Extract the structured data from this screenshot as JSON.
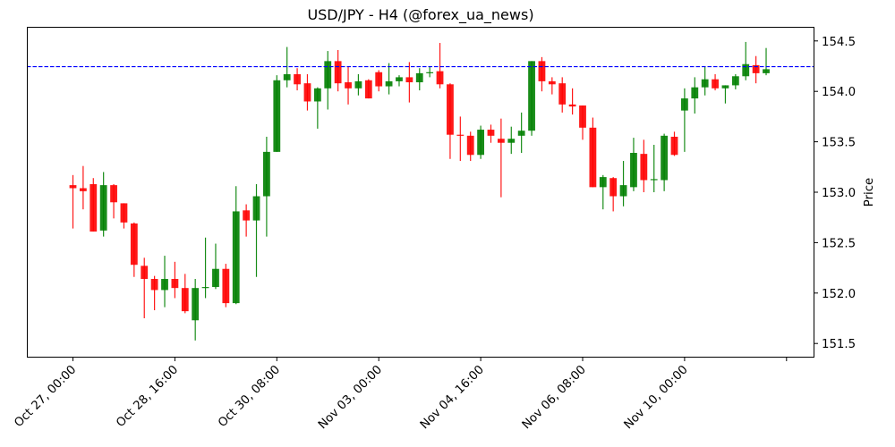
{
  "chart_data": {
    "type": "candlestick",
    "title": "USD/JPY - H4 (@forex_ua_news)",
    "xlabel": "",
    "ylabel": "Price",
    "ylim": [
      151.36,
      154.64
    ],
    "grid": false,
    "legend": null,
    "y_axis_position": "right",
    "y_ticks": [
      151.5,
      152.0,
      152.5,
      153.0,
      153.5,
      154.0,
      154.5
    ],
    "y_tick_labels": [
      "151.5",
      "152.0",
      "152.5",
      "153.0",
      "153.5",
      "154.0",
      "154.5"
    ],
    "x_tick_labels": [
      "Oct 27, 00:00",
      "Oct 28, 16:00",
      "Oct 30, 08:00",
      "Nov 03, 00:00",
      "Nov 04, 16:00",
      "Nov 06, 08:00",
      "Nov 10, 00:00",
      ""
    ],
    "x_tick_index": [
      0,
      10,
      20,
      30,
      40,
      50,
      60,
      70
    ],
    "reference_line": {
      "value": 154.245,
      "style": "dashed",
      "color": "#0000ff"
    },
    "colors": {
      "up": "#008000",
      "down": "#ff0000"
    },
    "candles": [
      {
        "o": 153.07,
        "h": 153.17,
        "l": 152.64,
        "c": 153.04
      },
      {
        "o": 153.04,
        "h": 153.26,
        "l": 152.83,
        "c": 153.01
      },
      {
        "o": 153.08,
        "h": 153.14,
        "l": 152.61,
        "c": 152.61
      },
      {
        "o": 152.62,
        "h": 153.2,
        "l": 152.56,
        "c": 153.07
      },
      {
        "o": 153.07,
        "h": 153.08,
        "l": 152.74,
        "c": 152.9
      },
      {
        "o": 152.89,
        "h": 152.89,
        "l": 152.64,
        "c": 152.7
      },
      {
        "o": 152.69,
        "h": 152.7,
        "l": 152.16,
        "c": 152.28
      },
      {
        "o": 152.27,
        "h": 152.35,
        "l": 151.75,
        "c": 152.14
      },
      {
        "o": 152.14,
        "h": 152.17,
        "l": 151.83,
        "c": 152.03
      },
      {
        "o": 152.03,
        "h": 152.37,
        "l": 151.86,
        "c": 152.14
      },
      {
        "o": 152.14,
        "h": 152.31,
        "l": 151.95,
        "c": 152.05
      },
      {
        "o": 152.05,
        "h": 152.19,
        "l": 151.8,
        "c": 151.82
      },
      {
        "o": 151.73,
        "h": 152.14,
        "l": 151.53,
        "c": 152.05
      },
      {
        "o": 152.05,
        "h": 152.55,
        "l": 151.95,
        "c": 152.06
      },
      {
        "o": 152.06,
        "h": 152.49,
        "l": 152.04,
        "c": 152.24
      },
      {
        "o": 152.24,
        "h": 152.29,
        "l": 151.86,
        "c": 151.9
      },
      {
        "o": 151.9,
        "h": 153.06,
        "l": 151.89,
        "c": 152.81
      },
      {
        "o": 152.82,
        "h": 152.88,
        "l": 152.56,
        "c": 152.72
      },
      {
        "o": 152.72,
        "h": 153.08,
        "l": 152.16,
        "c": 152.96
      },
      {
        "o": 152.96,
        "h": 153.55,
        "l": 152.56,
        "c": 153.4
      },
      {
        "o": 153.4,
        "h": 154.16,
        "l": 153.4,
        "c": 154.11
      },
      {
        "o": 154.11,
        "h": 154.44,
        "l": 154.04,
        "c": 154.17
      },
      {
        "o": 154.17,
        "h": 154.23,
        "l": 154.01,
        "c": 154.07
      },
      {
        "o": 154.08,
        "h": 154.17,
        "l": 153.81,
        "c": 153.9
      },
      {
        "o": 153.9,
        "h": 154.04,
        "l": 153.63,
        "c": 154.03
      },
      {
        "o": 154.03,
        "h": 154.4,
        "l": 153.82,
        "c": 154.3
      },
      {
        "o": 154.3,
        "h": 154.41,
        "l": 154.0,
        "c": 154.08
      },
      {
        "o": 154.09,
        "h": 154.25,
        "l": 153.87,
        "c": 154.03
      },
      {
        "o": 154.03,
        "h": 154.17,
        "l": 153.96,
        "c": 154.1
      },
      {
        "o": 154.11,
        "h": 154.12,
        "l": 153.93,
        "c": 153.93
      },
      {
        "o": 154.19,
        "h": 154.21,
        "l": 154.0,
        "c": 154.05
      },
      {
        "o": 154.05,
        "h": 154.28,
        "l": 153.97,
        "c": 154.1
      },
      {
        "o": 154.1,
        "h": 154.16,
        "l": 154.05,
        "c": 154.14
      },
      {
        "o": 154.14,
        "h": 154.29,
        "l": 153.89,
        "c": 154.09
      },
      {
        "o": 154.09,
        "h": 154.23,
        "l": 154.01,
        "c": 154.18
      },
      {
        "o": 154.18,
        "h": 154.25,
        "l": 154.14,
        "c": 154.19
      },
      {
        "o": 154.2,
        "h": 154.48,
        "l": 154.03,
        "c": 154.07
      },
      {
        "o": 154.07,
        "h": 154.08,
        "l": 153.33,
        "c": 153.57
      },
      {
        "o": 153.57,
        "h": 153.75,
        "l": 153.31,
        "c": 153.56
      },
      {
        "o": 153.56,
        "h": 153.6,
        "l": 153.31,
        "c": 153.37
      },
      {
        "o": 153.37,
        "h": 153.66,
        "l": 153.33,
        "c": 153.62
      },
      {
        "o": 153.62,
        "h": 153.67,
        "l": 153.49,
        "c": 153.56
      },
      {
        "o": 153.53,
        "h": 153.73,
        "l": 152.95,
        "c": 153.49
      },
      {
        "o": 153.49,
        "h": 153.65,
        "l": 153.38,
        "c": 153.53
      },
      {
        "o": 153.56,
        "h": 153.79,
        "l": 153.39,
        "c": 153.61
      },
      {
        "o": 153.61,
        "h": 154.3,
        "l": 153.56,
        "c": 154.3
      },
      {
        "o": 154.3,
        "h": 154.34,
        "l": 154.0,
        "c": 154.1
      },
      {
        "o": 154.1,
        "h": 154.14,
        "l": 153.97,
        "c": 154.07
      },
      {
        "o": 154.08,
        "h": 154.14,
        "l": 153.79,
        "c": 153.87
      },
      {
        "o": 153.87,
        "h": 154.03,
        "l": 153.77,
        "c": 153.85
      },
      {
        "o": 153.86,
        "h": 153.86,
        "l": 153.52,
        "c": 153.64
      },
      {
        "o": 153.64,
        "h": 153.74,
        "l": 153.05,
        "c": 153.05
      },
      {
        "o": 153.05,
        "h": 153.17,
        "l": 152.83,
        "c": 153.15
      },
      {
        "o": 153.14,
        "h": 153.15,
        "l": 152.81,
        "c": 152.96
      },
      {
        "o": 152.96,
        "h": 153.31,
        "l": 152.86,
        "c": 153.07
      },
      {
        "o": 153.05,
        "h": 153.54,
        "l": 153.01,
        "c": 153.39
      },
      {
        "o": 153.38,
        "h": 153.52,
        "l": 153.0,
        "c": 153.12
      },
      {
        "o": 153.12,
        "h": 153.47,
        "l": 153.0,
        "c": 153.13
      },
      {
        "o": 153.12,
        "h": 153.58,
        "l": 153.01,
        "c": 153.56
      },
      {
        "o": 153.55,
        "h": 153.6,
        "l": 153.36,
        "c": 153.37
      },
      {
        "o": 153.81,
        "h": 154.03,
        "l": 153.4,
        "c": 153.93
      },
      {
        "o": 153.93,
        "h": 154.14,
        "l": 153.78,
        "c": 154.04
      },
      {
        "o": 154.04,
        "h": 154.25,
        "l": 153.96,
        "c": 154.12
      },
      {
        "o": 154.12,
        "h": 154.17,
        "l": 154.01,
        "c": 154.03
      },
      {
        "o": 154.03,
        "h": 154.06,
        "l": 153.88,
        "c": 154.06
      },
      {
        "o": 154.06,
        "h": 154.17,
        "l": 154.02,
        "c": 154.15
      },
      {
        "o": 154.15,
        "h": 154.49,
        "l": 154.11,
        "c": 154.27
      },
      {
        "o": 154.26,
        "h": 154.35,
        "l": 154.08,
        "c": 154.18
      },
      {
        "o": 154.18,
        "h": 154.43,
        "l": 154.16,
        "c": 154.22
      }
    ]
  }
}
